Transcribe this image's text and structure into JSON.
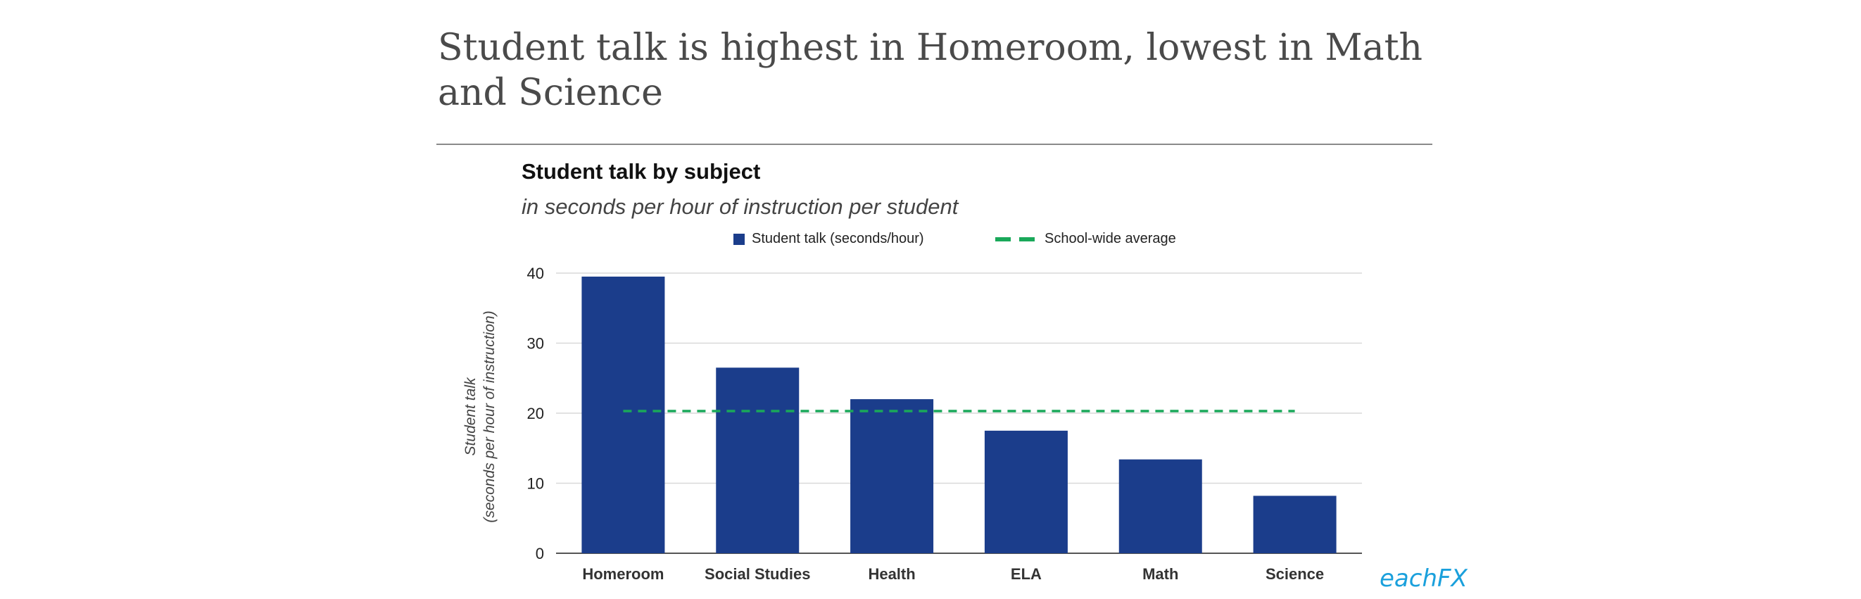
{
  "headline": "Student talk is highest in Homeroom, lowest in Math and Science",
  "watermark": "eachFX",
  "colors": {
    "bar": "#1b3d8b",
    "average_line": "#1aa85a",
    "grid": "#d9d9d9",
    "axis": "#555555"
  },
  "chart_data": {
    "type": "bar",
    "title": "Student talk by subject",
    "subtitle": "in seconds per hour of instruction per student",
    "xlabel": "",
    "ylabel": "Student talk\n(seconds per hour of instruction)",
    "categories": [
      "Homeroom",
      "Social Studies",
      "Health",
      "ELA",
      "Math",
      "Science"
    ],
    "series": [
      {
        "name": "Student talk (seconds/hour)",
        "values": [
          39.5,
          26.5,
          22,
          17.5,
          13.4,
          8.2
        ]
      }
    ],
    "reference_line": {
      "name": "School-wide average",
      "value": 20.3,
      "style": "dashed"
    },
    "ylim": [
      0,
      40
    ],
    "yticks": [
      0,
      10,
      20,
      30,
      40
    ],
    "grid": true,
    "legend": "top"
  }
}
